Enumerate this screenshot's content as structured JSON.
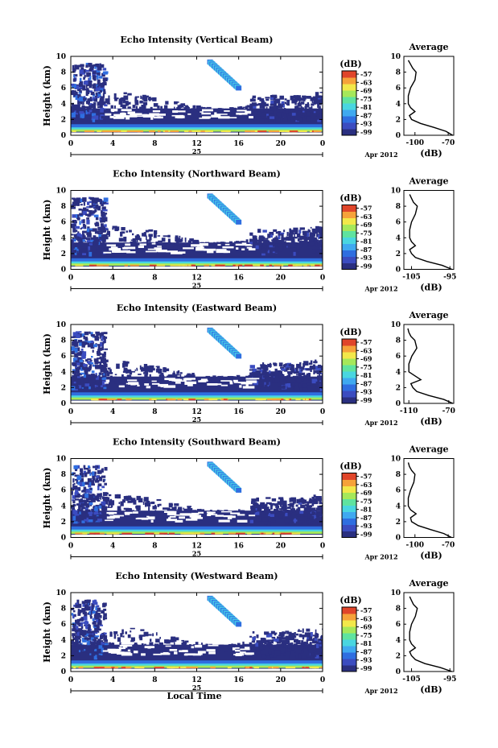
{
  "colors": {
    "colorbar": [
      "#2a2f80",
      "#3b4cc0",
      "#2f6ee0",
      "#3fa9f0",
      "#49d6e0",
      "#5fe39f",
      "#a5e85a",
      "#f2e84a",
      "#f6a23a",
      "#e0452a"
    ],
    "background": "#2a2f80",
    "fill_void": "#ffffff"
  },
  "shared": {
    "xlabel": "Local Time",
    "date_label": "25",
    "month_label": "Apr 2012",
    "ylabel": "Height (km)",
    "avg_title": "Average",
    "avg_xlabel": "(dB)",
    "cbar_title": "(dB)",
    "cbar_ticks": [
      "-57",
      "-63",
      "-69",
      "-75",
      "-81",
      "-87",
      "-93",
      "-99"
    ]
  },
  "chart_data": [
    {
      "type": "heatmap",
      "title": "Echo Intensity (Vertical Beam)",
      "x_ticks": [
        "0",
        "4",
        "8",
        "12",
        "16",
        "20",
        "0"
      ],
      "y_ticks": [
        "0",
        "2",
        "4",
        "6",
        "8",
        "10"
      ],
      "xlim": [
        0,
        24
      ],
      "ylim": [
        0,
        10
      ],
      "avg_profile": {
        "x_ticks": [
          "-100",
          "-70"
        ],
        "xlim": [
          -110,
          -65
        ],
        "heights": [
          0,
          0.5,
          1,
          1.5,
          2,
          2.5,
          3,
          3.5,
          4,
          5,
          6,
          7,
          8,
          8.5,
          9,
          9.5
        ],
        "values": [
          -66,
          -72,
          -83,
          -95,
          -103,
          -105,
          -100,
          -104,
          -106,
          -106,
          -104,
          -100,
          -99,
          -102,
          -104,
          -106
        ]
      }
    },
    {
      "type": "heatmap",
      "title": "Echo Intensity (Northward Beam)",
      "x_ticks": [
        "0",
        "4",
        "8",
        "12",
        "16",
        "20",
        "0"
      ],
      "y_ticks": [
        "0",
        "2",
        "4",
        "6",
        "8",
        "10"
      ],
      "xlim": [
        0,
        24
      ],
      "ylim": [
        0,
        10
      ],
      "avg_profile": {
        "x_ticks": [
          "-105",
          "-95"
        ],
        "xlim": [
          -107,
          -94
        ],
        "heights": [
          0,
          0.5,
          1,
          1.5,
          2,
          2.5,
          3,
          3.5,
          4,
          5,
          6,
          7,
          8,
          8.5,
          9,
          9.5
        ],
        "values": [
          -94.5,
          -97,
          -101,
          -104,
          -105,
          -105.5,
          -104,
          -105,
          -105.5,
          -105.5,
          -105,
          -104,
          -103.5,
          -104.5,
          -105,
          -105.5
        ]
      }
    },
    {
      "type": "heatmap",
      "title": "Echo Intensity (Eastward Beam)",
      "x_ticks": [
        "0",
        "4",
        "8",
        "12",
        "16",
        "20",
        "0"
      ],
      "y_ticks": [
        "0",
        "2",
        "4",
        "6",
        "8",
        "10"
      ],
      "xlim": [
        0,
        24
      ],
      "ylim": [
        0,
        10
      ],
      "avg_profile": {
        "x_ticks": [
          "-110",
          "-70"
        ],
        "xlim": [
          -115,
          -65
        ],
        "heights": [
          0,
          0.5,
          1,
          1.5,
          2,
          2.5,
          3,
          3.5,
          4,
          5,
          6,
          7,
          8,
          8.5,
          9,
          9.5
        ],
        "values": [
          -66,
          -75,
          -90,
          -102,
          -106,
          -108,
          -98,
          -104,
          -110,
          -110,
          -107,
          -102,
          -104,
          -108,
          -110,
          -111
        ]
      }
    },
    {
      "type": "heatmap",
      "title": "Echo Intensity (Southward Beam)",
      "x_ticks": [
        "0",
        "4",
        "8",
        "12",
        "16",
        "20",
        "0"
      ],
      "y_ticks": [
        "0",
        "2",
        "4",
        "6",
        "8",
        "10"
      ],
      "xlim": [
        0,
        24
      ],
      "ylim": [
        0,
        10
      ],
      "avg_profile": {
        "x_ticks": [
          "-100",
          "-70"
        ],
        "xlim": [
          -110,
          -65
        ],
        "heights": [
          0,
          0.5,
          1,
          1.5,
          2,
          2.5,
          3,
          3.5,
          4,
          5,
          6,
          7,
          8,
          8.5,
          9,
          9.5
        ],
        "values": [
          -67,
          -74,
          -86,
          -97,
          -103,
          -104,
          -99,
          -104,
          -106,
          -106,
          -104,
          -101,
          -100,
          -103,
          -105,
          -106
        ]
      }
    },
    {
      "type": "heatmap",
      "title": "Echo Intensity (Westward Beam)",
      "x_ticks": [
        "0",
        "4",
        "8",
        "12",
        "16",
        "20",
        "0"
      ],
      "y_ticks": [
        "0",
        "2",
        "4",
        "6",
        "8",
        "10"
      ],
      "xlim": [
        0,
        24
      ],
      "ylim": [
        0,
        10
      ],
      "avg_profile": {
        "x_ticks": [
          "-105",
          "-95"
        ],
        "xlim": [
          -107,
          -94
        ],
        "heights": [
          0,
          0.5,
          1,
          1.5,
          2,
          2.5,
          3,
          3.5,
          4,
          5,
          6,
          7,
          8,
          8.5,
          9,
          9.5
        ],
        "values": [
          -94.5,
          -97.5,
          -101.5,
          -104,
          -105,
          -105.5,
          -104,
          -105,
          -105.5,
          -105.5,
          -105,
          -104,
          -103.5,
          -104.5,
          -105,
          -105.5
        ]
      }
    }
  ]
}
